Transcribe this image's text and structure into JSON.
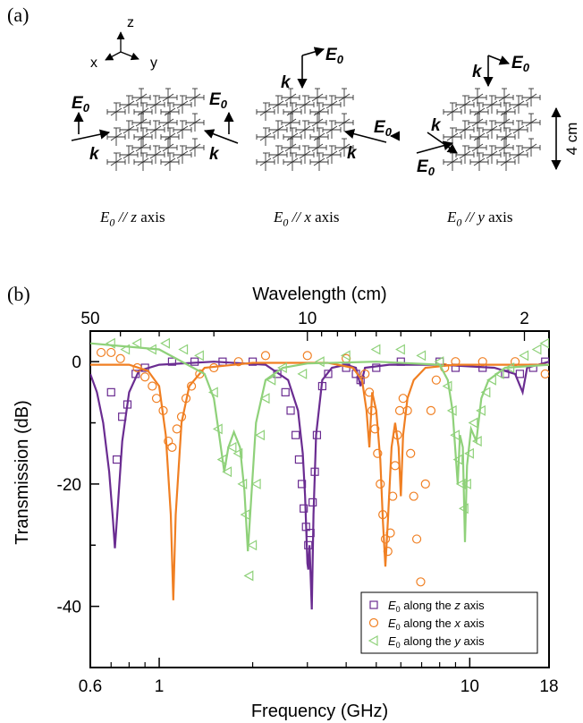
{
  "panel_a": {
    "label": "(a)",
    "axes": {
      "x": "x",
      "y": "y",
      "z": "z"
    },
    "scale_bar": "4 cm",
    "field_symbol": "E",
    "field_subscript": "0",
    "wave_symbol": "k",
    "captions": [
      {
        "E0": "E",
        "sub": "0",
        "rest_prefix": " // ",
        "axis": "z",
        "rest_suffix": " axis"
      },
      {
        "E0": "E",
        "sub": "0",
        "rest_prefix": " // ",
        "axis": "x",
        "rest_suffix": " axis"
      },
      {
        "E0": "E",
        "sub": "0",
        "rest_prefix": " // ",
        "axis": "y",
        "rest_suffix": " axis"
      }
    ]
  },
  "panel_b": {
    "label": "(b)"
  },
  "chart_data": {
    "type": "scatter",
    "xlabel": "Frequency (GHz)",
    "x2label": "Wavelength (cm)",
    "ylabel": "Transmission (dB)",
    "xscale": "log",
    "xlim": [
      0.6,
      18
    ],
    "ylim": [
      -50,
      5
    ],
    "xticks": [
      0.6,
      1,
      10,
      18
    ],
    "xtick_labels": [
      "0.6",
      "1",
      "10",
      "18"
    ],
    "yticks": [
      0,
      -20,
      -40
    ],
    "ytick_labels": [
      "0",
      "-20",
      "-40"
    ],
    "x2ticks": [
      50,
      10,
      2
    ],
    "x2tick_labels": [
      "50",
      "10",
      "2"
    ],
    "legend_position": "bottom-right",
    "colors": {
      "z": "#6a2c91",
      "x": "#f07f22",
      "y": "#8fd17a"
    },
    "series": [
      {
        "name": "E0 along the z axis",
        "legend": {
          "sym": "E",
          "sub": "0",
          "pre": " along the ",
          "axis": "z",
          "post": " axis"
        },
        "marker": "square",
        "color": "#6a2c91",
        "points": [
          [
            0.7,
            -5
          ],
          [
            0.73,
            -16
          ],
          [
            0.76,
            -9
          ],
          [
            0.79,
            -7
          ],
          [
            0.84,
            -2
          ],
          [
            0.9,
            -1
          ],
          [
            1.1,
            0
          ],
          [
            1.3,
            0
          ],
          [
            1.6,
            0
          ],
          [
            2.0,
            0
          ],
          [
            2.4,
            -2
          ],
          [
            2.55,
            -5
          ],
          [
            2.65,
            -8
          ],
          [
            2.75,
            -12
          ],
          [
            2.82,
            -16
          ],
          [
            2.88,
            -20
          ],
          [
            2.92,
            -24
          ],
          [
            2.97,
            -27
          ],
          [
            3.02,
            -30
          ],
          [
            3.07,
            -28
          ],
          [
            3.12,
            -23
          ],
          [
            3.17,
            -18
          ],
          [
            3.22,
            -12
          ],
          [
            3.35,
            -4
          ],
          [
            3.5,
            -2
          ],
          [
            4.0,
            -1
          ],
          [
            4.3,
            -2
          ],
          [
            4.45,
            -3
          ],
          [
            5.0,
            -1
          ],
          [
            6.0,
            0
          ],
          [
            8.0,
            0
          ],
          [
            9.0,
            -1
          ],
          [
            11.0,
            -1
          ],
          [
            13.0,
            -2
          ],
          [
            14.5,
            -2
          ],
          [
            16.0,
            -1
          ],
          [
            17.5,
            0
          ]
        ],
        "curve": [
          [
            0.6,
            -2
          ],
          [
            0.63,
            -5
          ],
          [
            0.66,
            -10
          ],
          [
            0.69,
            -18
          ],
          [
            0.71,
            -26
          ],
          [
            0.72,
            -30.5
          ],
          [
            0.735,
            -24
          ],
          [
            0.76,
            -13
          ],
          [
            0.8,
            -5
          ],
          [
            0.86,
            -1.5
          ],
          [
            1.0,
            -0.5
          ],
          [
            1.5,
            0
          ],
          [
            2.2,
            -0.5
          ],
          [
            2.6,
            -3
          ],
          [
            2.8,
            -8
          ],
          [
            2.9,
            -15
          ],
          [
            2.95,
            -22
          ],
          [
            3.0,
            -33
          ],
          [
            3.02,
            -34
          ],
          [
            3.05,
            -30
          ],
          [
            3.1,
            -40.5
          ],
          [
            3.14,
            -25
          ],
          [
            3.2,
            -12
          ],
          [
            3.35,
            -3
          ],
          [
            3.6,
            -1
          ],
          [
            4.0,
            -0.5
          ],
          [
            4.3,
            -1
          ],
          [
            4.45,
            -4
          ],
          [
            4.6,
            -1
          ],
          [
            5.5,
            -0.5
          ],
          [
            8.0,
            -0.5
          ],
          [
            12.0,
            -1
          ],
          [
            14.0,
            -2
          ],
          [
            14.8,
            -5
          ],
          [
            15.3,
            -1
          ],
          [
            18,
            0
          ]
        ]
      },
      {
        "name": "E0 along the x axis",
        "legend": {
          "sym": "E",
          "sub": "0",
          "pre": " along the ",
          "axis": "x",
          "post": " axis"
        },
        "marker": "circle",
        "color": "#f07f22",
        "points": [
          [
            0.65,
            1.5
          ],
          [
            0.7,
            1.5
          ],
          [
            0.75,
            0.5
          ],
          [
            0.85,
            -1
          ],
          [
            0.9,
            -2.5
          ],
          [
            0.95,
            -4
          ],
          [
            0.98,
            -6
          ],
          [
            1.03,
            -8
          ],
          [
            1.07,
            -13
          ],
          [
            1.1,
            -14
          ],
          [
            1.14,
            -11
          ],
          [
            1.18,
            -9
          ],
          [
            1.22,
            -6
          ],
          [
            1.27,
            -4
          ],
          [
            1.35,
            -2
          ],
          [
            1.5,
            -1
          ],
          [
            1.8,
            0
          ],
          [
            2.2,
            1
          ],
          [
            3.0,
            1
          ],
          [
            4.0,
            0.5
          ],
          [
            4.6,
            -2
          ],
          [
            4.75,
            -5
          ],
          [
            4.85,
            -8
          ],
          [
            4.95,
            -11
          ],
          [
            5.05,
            -15
          ],
          [
            5.15,
            -20
          ],
          [
            5.25,
            -25
          ],
          [
            5.35,
            -29
          ],
          [
            5.45,
            -31
          ],
          [
            5.55,
            -28
          ],
          [
            5.65,
            -22
          ],
          [
            5.75,
            -17
          ],
          [
            5.85,
            -12
          ],
          [
            5.95,
            -8
          ],
          [
            6.1,
            -6
          ],
          [
            6.3,
            -8
          ],
          [
            6.45,
            -15
          ],
          [
            6.6,
            -22
          ],
          [
            6.75,
            -29
          ],
          [
            6.95,
            -36
          ],
          [
            7.2,
            -20
          ],
          [
            7.5,
            -8
          ],
          [
            7.8,
            -3
          ],
          [
            8.3,
            -1
          ],
          [
            9.0,
            0
          ],
          [
            11.0,
            0
          ],
          [
            14.0,
            0
          ],
          [
            17.5,
            -2
          ]
        ],
        "curve": [
          [
            0.6,
            -0.5
          ],
          [
            0.8,
            -0.5
          ],
          [
            0.92,
            -1.5
          ],
          [
            1.0,
            -4
          ],
          [
            1.05,
            -12
          ],
          [
            1.09,
            -25
          ],
          [
            1.11,
            -39
          ],
          [
            1.13,
            -25
          ],
          [
            1.18,
            -10
          ],
          [
            1.25,
            -4
          ],
          [
            1.4,
            -1
          ],
          [
            2.0,
            -0.2
          ],
          [
            3.5,
            -0.2
          ],
          [
            4.2,
            -1
          ],
          [
            4.5,
            -3
          ],
          [
            4.65,
            -8
          ],
          [
            4.75,
            -14
          ],
          [
            4.85,
            -5
          ],
          [
            5.0,
            -8
          ],
          [
            5.15,
            -16
          ],
          [
            5.25,
            -26
          ],
          [
            5.35,
            -33.5
          ],
          [
            5.45,
            -26
          ],
          [
            5.6,
            -14
          ],
          [
            5.75,
            -10
          ],
          [
            5.9,
            -14
          ],
          [
            6.0,
            -22
          ],
          [
            6.1,
            -12
          ],
          [
            6.3,
            -6
          ],
          [
            6.6,
            -3
          ],
          [
            7.2,
            -1
          ],
          [
            9.0,
            -0.5
          ],
          [
            12.0,
            -0.5
          ],
          [
            18,
            -0.5
          ]
        ]
      },
      {
        "name": "E0 along the y axis",
        "legend": {
          "sym": "E",
          "sub": "0",
          "pre": " along the ",
          "axis": "y",
          "post": " axis"
        },
        "marker": "triangle-left",
        "color": "#8fd17a",
        "points": [
          [
            0.7,
            3
          ],
          [
            0.78,
            2
          ],
          [
            0.85,
            3
          ],
          [
            0.95,
            2
          ],
          [
            1.05,
            3
          ],
          [
            1.2,
            2
          ],
          [
            1.35,
            1
          ],
          [
            1.5,
            -5
          ],
          [
            1.55,
            -11
          ],
          [
            1.6,
            -16
          ],
          [
            1.66,
            -18
          ],
          [
            1.72,
            -14
          ],
          [
            1.8,
            -15
          ],
          [
            1.86,
            -20
          ],
          [
            1.9,
            -25
          ],
          [
            1.95,
            -35
          ],
          [
            2.0,
            -30
          ],
          [
            2.06,
            -20
          ],
          [
            2.12,
            -12
          ],
          [
            2.2,
            -6
          ],
          [
            2.3,
            -3
          ],
          [
            2.5,
            -1
          ],
          [
            2.9,
            -2
          ],
          [
            3.3,
            0
          ],
          [
            4.0,
            1
          ],
          [
            5.0,
            2
          ],
          [
            6.0,
            2
          ],
          [
            7.0,
            1
          ],
          [
            8.0,
            0
          ],
          [
            8.5,
            -4
          ],
          [
            8.8,
            -8
          ],
          [
            9.0,
            -12
          ],
          [
            9.2,
            -16
          ],
          [
            9.4,
            -20
          ],
          [
            9.6,
            -24
          ],
          [
            9.8,
            -20
          ],
          [
            10.0,
            -15
          ],
          [
            10.3,
            -10
          ],
          [
            10.6,
            -13
          ],
          [
            10.9,
            -8
          ],
          [
            11.3,
            -5
          ],
          [
            11.8,
            -3
          ],
          [
            12.5,
            -2
          ],
          [
            13.5,
            -1
          ],
          [
            15.0,
            1
          ],
          [
            16.5,
            2
          ],
          [
            17.5,
            3
          ]
        ],
        "curve": [
          [
            0.6,
            3
          ],
          [
            1.0,
            2
          ],
          [
            1.4,
            -2
          ],
          [
            1.5,
            -6
          ],
          [
            1.56,
            -12
          ],
          [
            1.62,
            -18
          ],
          [
            1.67,
            -14
          ],
          [
            1.74,
            -11.5
          ],
          [
            1.82,
            -14
          ],
          [
            1.88,
            -21
          ],
          [
            1.93,
            -31
          ],
          [
            1.98,
            -22
          ],
          [
            2.05,
            -10
          ],
          [
            2.2,
            -3
          ],
          [
            2.5,
            -1
          ],
          [
            3.0,
            -0.3
          ],
          [
            5.0,
            0
          ],
          [
            8.0,
            -0.5
          ],
          [
            8.5,
            -3
          ],
          [
            8.8,
            -8
          ],
          [
            9.0,
            -15
          ],
          [
            9.15,
            -20
          ],
          [
            9.3,
            -12
          ],
          [
            9.5,
            -14
          ],
          [
            9.65,
            -29.5
          ],
          [
            9.8,
            -17
          ],
          [
            10.1,
            -11
          ],
          [
            10.5,
            -13
          ],
          [
            10.9,
            -6
          ],
          [
            11.5,
            -3
          ],
          [
            13.0,
            -1
          ],
          [
            18,
            -0.5
          ]
        ]
      }
    ]
  }
}
